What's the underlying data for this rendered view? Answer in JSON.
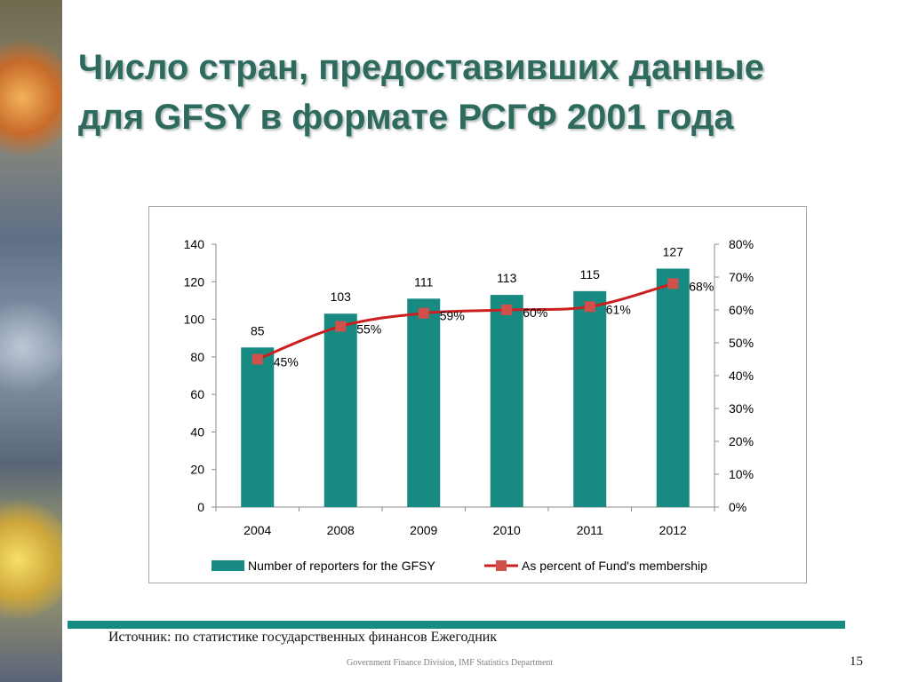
{
  "slide": {
    "title_line1": "Число стран, предоставивших данные",
    "title_line2": "для GFSY в формате РСГФ 2001 года",
    "source": "Источник: по статистике государственных финансов Ежегодник",
    "division": "Government Finance Division, IMF Statistics Department",
    "page_number": "15"
  },
  "colors": {
    "title": "#2e6b5e",
    "bar": "#178a82",
    "line": "#cc1f1f",
    "marker": "#d0504b",
    "footer_bar": "#178a82"
  },
  "chart_data": {
    "type": "bar",
    "categories": [
      "2004",
      "2008",
      "2009",
      "2010",
      "2011",
      "2012"
    ],
    "series": [
      {
        "name": "Number of reporters for the GFSY",
        "type": "bar",
        "axis": "left",
        "values": [
          85,
          103,
          111,
          113,
          115,
          127
        ],
        "labels": [
          "85",
          "103",
          "111",
          "113",
          "115",
          "127"
        ]
      },
      {
        "name": "As percent of Fund's membership",
        "type": "line",
        "axis": "right",
        "values": [
          45,
          55,
          59,
          60,
          61,
          68
        ],
        "labels": [
          "45%",
          "55%",
          "59%",
          "60%",
          "61%",
          "68%"
        ]
      }
    ],
    "y_left": {
      "ylim": [
        0,
        140
      ],
      "ticks": [
        "0",
        "20",
        "40",
        "60",
        "80",
        "100",
        "120",
        "140"
      ]
    },
    "y_right": {
      "ylim": [
        0,
        80
      ],
      "ticks": [
        "0%",
        "10%",
        "20%",
        "30%",
        "40%",
        "50%",
        "60%",
        "70%",
        "80%"
      ]
    },
    "grid": false,
    "legend": "bottom"
  }
}
